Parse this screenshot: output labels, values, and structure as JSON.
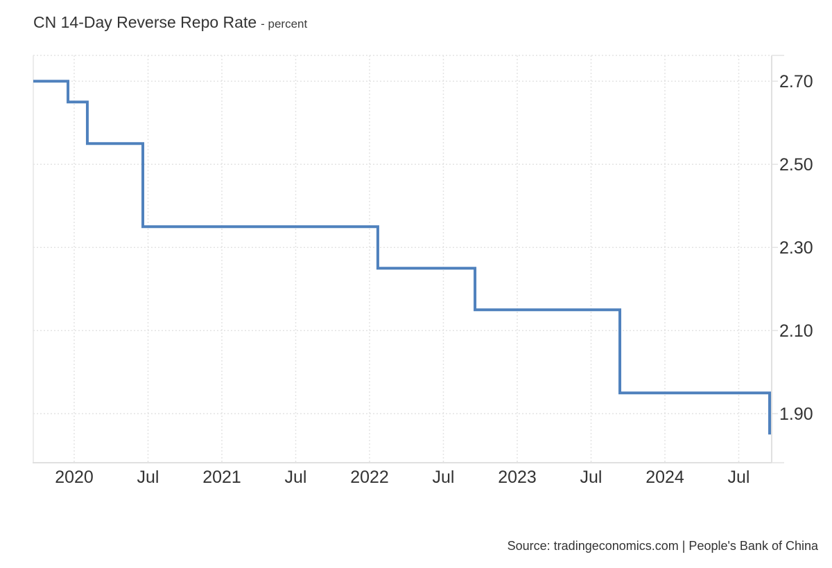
{
  "header": {
    "title": "CN 14-Day Reverse Repo Rate",
    "subtitle": "- percent"
  },
  "footer": {
    "source_text": "Source: tradingeconomics.com | People's Bank of China"
  },
  "chart_data": {
    "type": "line",
    "line_style": "step-after",
    "title": "CN 14-Day Reverse Repo Rate",
    "ylabel": "percent",
    "xlabel": "",
    "legend": "none",
    "grid": "dotted",
    "line_color": "#4f81bd",
    "grid_color": "#e3e3e3",
    "axis_color": "#e0e0e0",
    "label_color": "#333333",
    "x_domain": [
      2019.723,
      2024.723
    ],
    "y_domain": [
      1.782,
      2.762
    ],
    "x_ticks": [
      {
        "x": 2020.0,
        "label": "2020"
      },
      {
        "x": 2020.5,
        "label": "Jul"
      },
      {
        "x": 2021.0,
        "label": "2021"
      },
      {
        "x": 2021.5,
        "label": "Jul"
      },
      {
        "x": 2022.0,
        "label": "2022"
      },
      {
        "x": 2022.5,
        "label": "Jul"
      },
      {
        "x": 2023.0,
        "label": "2023"
      },
      {
        "x": 2023.5,
        "label": "Jul"
      },
      {
        "x": 2024.0,
        "label": "2024"
      },
      {
        "x": 2024.5,
        "label": "Jul"
      }
    ],
    "y_ticks": [
      {
        "v": 2.7,
        "label": "2.70"
      },
      {
        "v": 2.5,
        "label": "2.50"
      },
      {
        "v": 2.3,
        "label": "2.30"
      },
      {
        "v": 2.1,
        "label": "2.10"
      },
      {
        "v": 1.9,
        "label": "1.90"
      }
    ],
    "steps": [
      {
        "x": 2019.723,
        "date": "2019-09",
        "value": 2.7
      },
      {
        "x": 2019.958,
        "date": "2019-12",
        "value": 2.65
      },
      {
        "x": 2020.089,
        "date": "2020-02",
        "value": 2.55
      },
      {
        "x": 2020.465,
        "date": "2020-06",
        "value": 2.35
      },
      {
        "x": 2022.056,
        "date": "2022-01",
        "value": 2.25
      },
      {
        "x": 2022.714,
        "date": "2022-09",
        "value": 2.15
      },
      {
        "x": 2023.695,
        "date": "2023-09",
        "value": 1.95
      },
      {
        "x": 2024.709,
        "date": "2024-09",
        "value": 1.85
      }
    ]
  }
}
